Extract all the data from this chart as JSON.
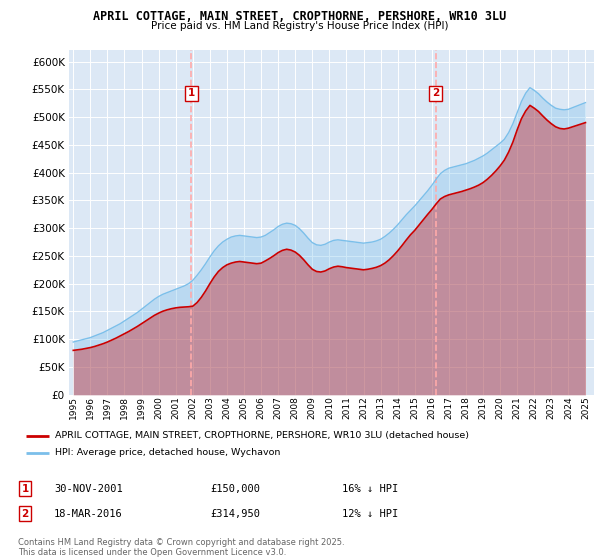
{
  "title": "APRIL COTTAGE, MAIN STREET, CROPTHORNE, PERSHORE, WR10 3LU",
  "subtitle": "Price paid vs. HM Land Registry's House Price Index (HPI)",
  "legend_line1": "APRIL COTTAGE, MAIN STREET, CROPTHORNE, PERSHORE, WR10 3LU (detached house)",
  "legend_line2": "HPI: Average price, detached house, Wychavon",
  "sale1_label": "1",
  "sale1_date": "30-NOV-2001",
  "sale1_price": "£150,000",
  "sale1_hpi": "16% ↓ HPI",
  "sale2_label": "2",
  "sale2_date": "18-MAR-2016",
  "sale2_price": "£314,950",
  "sale2_hpi": "12% ↓ HPI",
  "footer": "Contains HM Land Registry data © Crown copyright and database right 2025.\nThis data is licensed under the Open Government Licence v3.0.",
  "hpi_color": "#7bbfea",
  "price_color": "#cc0000",
  "vline_color": "#ffaaaa",
  "background_color": "#dce8f5",
  "ylim": [
    0,
    620000
  ],
  "yticks": [
    0,
    50000,
    100000,
    150000,
    200000,
    250000,
    300000,
    350000,
    400000,
    450000,
    500000,
    550000,
    600000
  ],
  "sale1_year": 2001.92,
  "sale2_year": 2016.22,
  "hpi_years": [
    1995.0,
    1995.25,
    1995.5,
    1995.75,
    1996.0,
    1996.25,
    1996.5,
    1996.75,
    1997.0,
    1997.25,
    1997.5,
    1997.75,
    1998.0,
    1998.25,
    1998.5,
    1998.75,
    1999.0,
    1999.25,
    1999.5,
    1999.75,
    2000.0,
    2000.25,
    2000.5,
    2000.75,
    2001.0,
    2001.25,
    2001.5,
    2001.75,
    2002.0,
    2002.25,
    2002.5,
    2002.75,
    2003.0,
    2003.25,
    2003.5,
    2003.75,
    2004.0,
    2004.25,
    2004.5,
    2004.75,
    2005.0,
    2005.25,
    2005.5,
    2005.75,
    2006.0,
    2006.25,
    2006.5,
    2006.75,
    2007.0,
    2007.25,
    2007.5,
    2007.75,
    2008.0,
    2008.25,
    2008.5,
    2008.75,
    2009.0,
    2009.25,
    2009.5,
    2009.75,
    2010.0,
    2010.25,
    2010.5,
    2010.75,
    2011.0,
    2011.25,
    2011.5,
    2011.75,
    2012.0,
    2012.25,
    2012.5,
    2012.75,
    2013.0,
    2013.25,
    2013.5,
    2013.75,
    2014.0,
    2014.25,
    2014.5,
    2014.75,
    2015.0,
    2015.25,
    2015.5,
    2015.75,
    2016.0,
    2016.25,
    2016.5,
    2016.75,
    2017.0,
    2017.25,
    2017.5,
    2017.75,
    2018.0,
    2018.25,
    2018.5,
    2018.75,
    2019.0,
    2019.25,
    2019.5,
    2019.75,
    2020.0,
    2020.25,
    2020.5,
    2020.75,
    2021.0,
    2021.25,
    2021.5,
    2021.75,
    2022.0,
    2022.25,
    2022.5,
    2022.75,
    2023.0,
    2023.25,
    2023.5,
    2023.75,
    2024.0,
    2024.25,
    2024.5,
    2024.75,
    2025.0
  ],
  "hpi_values": [
    95000,
    97000,
    99000,
    101000,
    103000,
    106000,
    109000,
    112000,
    116000,
    120000,
    124000,
    128000,
    133000,
    138000,
    143000,
    148000,
    154000,
    160000,
    166000,
    172000,
    177000,
    181000,
    184000,
    187000,
    190000,
    193000,
    196000,
    200000,
    206000,
    215000,
    225000,
    236000,
    248000,
    259000,
    268000,
    275000,
    280000,
    284000,
    286000,
    287000,
    286000,
    285000,
    284000,
    283000,
    284000,
    287000,
    292000,
    297000,
    303000,
    307000,
    309000,
    308000,
    305000,
    299000,
    291000,
    282000,
    274000,
    270000,
    269000,
    271000,
    275000,
    278000,
    279000,
    278000,
    277000,
    276000,
    275000,
    274000,
    273000,
    274000,
    275000,
    277000,
    280000,
    285000,
    291000,
    298000,
    306000,
    315000,
    324000,
    332000,
    340000,
    349000,
    358000,
    367000,
    377000,
    388000,
    398000,
    404000,
    408000,
    410000,
    412000,
    414000,
    416000,
    419000,
    422000,
    426000,
    430000,
    435000,
    441000,
    447000,
    453000,
    460000,
    472000,
    488000,
    508000,
    528000,
    543000,
    553000,
    548000,
    542000,
    534000,
    527000,
    521000,
    516000,
    514000,
    513000,
    514000,
    517000,
    520000,
    523000,
    526000
  ],
  "price_years": [
    1995.0,
    1995.25,
    1995.5,
    1995.75,
    1996.0,
    1996.25,
    1996.5,
    1996.75,
    1997.0,
    1997.25,
    1997.5,
    1997.75,
    1998.0,
    1998.25,
    1998.5,
    1998.75,
    1999.0,
    1999.25,
    1999.5,
    1999.75,
    2000.0,
    2000.25,
    2000.5,
    2000.75,
    2001.0,
    2001.25,
    2001.5,
    2001.75,
    2002.0,
    2002.25,
    2002.5,
    2002.75,
    2003.0,
    2003.25,
    2003.5,
    2003.75,
    2004.0,
    2004.25,
    2004.5,
    2004.75,
    2005.0,
    2005.25,
    2005.5,
    2005.75,
    2006.0,
    2006.25,
    2006.5,
    2006.75,
    2007.0,
    2007.25,
    2007.5,
    2007.75,
    2008.0,
    2008.25,
    2008.5,
    2008.75,
    2009.0,
    2009.25,
    2009.5,
    2009.75,
    2010.0,
    2010.25,
    2010.5,
    2010.75,
    2011.0,
    2011.25,
    2011.5,
    2011.75,
    2012.0,
    2012.25,
    2012.5,
    2012.75,
    2013.0,
    2013.25,
    2013.5,
    2013.75,
    2014.0,
    2014.25,
    2014.5,
    2014.75,
    2015.0,
    2015.25,
    2015.5,
    2015.75,
    2016.0,
    2016.25,
    2016.5,
    2016.75,
    2017.0,
    2017.25,
    2017.5,
    2017.75,
    2018.0,
    2018.25,
    2018.5,
    2018.75,
    2019.0,
    2019.25,
    2019.5,
    2019.75,
    2020.0,
    2020.25,
    2020.5,
    2020.75,
    2021.0,
    2021.25,
    2021.5,
    2021.75,
    2022.0,
    2022.25,
    2022.5,
    2022.75,
    2023.0,
    2023.25,
    2023.5,
    2023.75,
    2024.0,
    2024.25,
    2024.5,
    2024.75,
    2025.0
  ],
  "price_values": [
    80000,
    81000,
    82000,
    83500,
    85000,
    87000,
    89500,
    92000,
    95000,
    98500,
    102000,
    106000,
    110000,
    114000,
    118500,
    123000,
    128000,
    133000,
    138000,
    143000,
    147000,
    150500,
    153000,
    155000,
    156500,
    157500,
    158000,
    158500,
    159500,
    166000,
    175500,
    187000,
    200000,
    212000,
    222000,
    229000,
    234000,
    237000,
    239000,
    240000,
    239000,
    238000,
    237000,
    236000,
    237000,
    241000,
    245500,
    250500,
    256000,
    260000,
    262000,
    260500,
    257000,
    251000,
    243000,
    234000,
    226000,
    222000,
    221000,
    223000,
    227000,
    230000,
    231500,
    230500,
    229000,
    228000,
    227000,
    226000,
    225000,
    226000,
    227500,
    229500,
    232500,
    237000,
    243000,
    250500,
    259000,
    268500,
    278500,
    288000,
    296000,
    305500,
    315000,
    324500,
    333500,
    343500,
    352500,
    357000,
    360000,
    362000,
    364000,
    366000,
    368500,
    371000,
    374000,
    377500,
    382000,
    388000,
    395000,
    403000,
    412000,
    422500,
    437000,
    455000,
    477000,
    497000,
    511000,
    521000,
    516000,
    510000,
    502000,
    494500,
    488000,
    482500,
    479500,
    478500,
    480000,
    482500,
    485000,
    487500,
    490000
  ]
}
